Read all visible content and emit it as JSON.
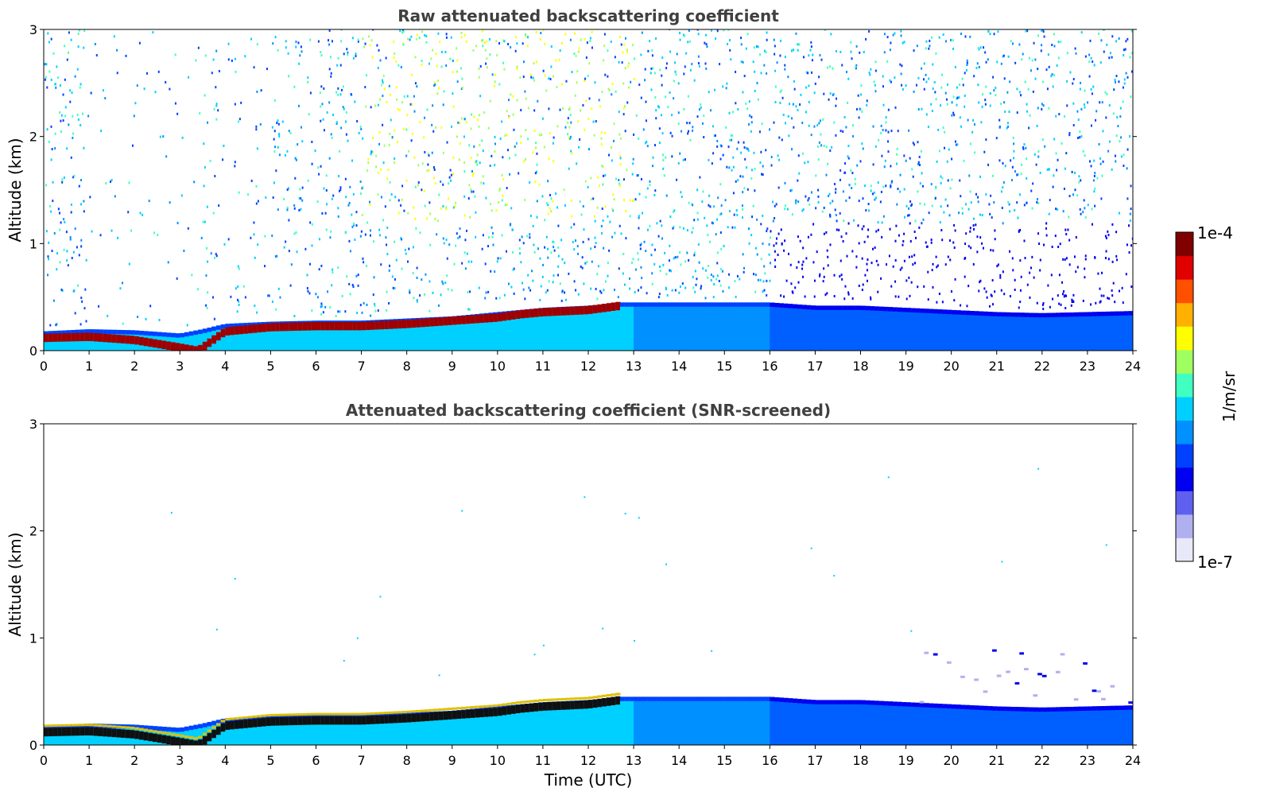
{
  "chart_data": [
    {
      "type": "heatmap",
      "title": "Raw attenuated backscattering coefficient",
      "xlabel": "",
      "ylabel": "Altitude (km)",
      "xlim": [
        0,
        24
      ],
      "ylim": [
        0,
        3
      ],
      "xticks": [
        "0",
        "1",
        "2",
        "3",
        "4",
        "5",
        "6",
        "7",
        "8",
        "9",
        "10",
        "11",
        "12",
        "13",
        "14",
        "15",
        "16",
        "17",
        "18",
        "19",
        "20",
        "21",
        "22",
        "23",
        "24"
      ],
      "yticks": [
        "0",
        "1",
        "2",
        "3"
      ],
      "boundary_layer_top_km": [
        [
          0,
          0.18
        ],
        [
          1,
          0.2
        ],
        [
          2,
          0.19
        ],
        [
          3,
          0.16
        ],
        [
          3.5,
          0.2
        ],
        [
          4,
          0.25
        ],
        [
          5,
          0.27
        ],
        [
          6,
          0.28
        ],
        [
          7,
          0.28
        ],
        [
          8,
          0.3
        ],
        [
          9,
          0.32
        ],
        [
          10,
          0.36
        ],
        [
          11,
          0.4
        ],
        [
          12,
          0.42
        ],
        [
          12.7,
          0.45
        ],
        [
          13,
          0.45
        ],
        [
          14,
          0.45
        ],
        [
          15,
          0.45
        ],
        [
          16,
          0.45
        ],
        [
          17,
          0.42
        ],
        [
          18,
          0.42
        ],
        [
          19,
          0.4
        ],
        [
          20,
          0.38
        ],
        [
          21,
          0.36
        ],
        [
          22,
          0.35
        ],
        [
          23,
          0.36
        ],
        [
          24,
          0.37
        ]
      ],
      "strong_layer_top_km": [
        [
          0,
          0.14
        ],
        [
          1,
          0.15
        ],
        [
          2,
          0.12
        ],
        [
          3,
          0.05
        ],
        [
          3.4,
          0.02
        ],
        [
          4,
          0.2
        ],
        [
          5,
          0.24
        ],
        [
          6,
          0.25
        ],
        [
          7,
          0.25
        ],
        [
          8,
          0.27
        ],
        [
          9,
          0.3
        ],
        [
          10,
          0.33
        ],
        [
          10.5,
          0.36
        ],
        [
          11,
          0.38
        ],
        [
          12,
          0.4
        ],
        [
          12.7,
          0.44
        ]
      ]
    },
    {
      "type": "heatmap",
      "title": "Attenuated backscattering coefficient (SNR-screened)",
      "xlabel": "Time (UTC)",
      "ylabel": "Altitude (km)",
      "xlim": [
        0,
        24
      ],
      "ylim": [
        0,
        3
      ],
      "xticks": [
        "0",
        "1",
        "2",
        "3",
        "4",
        "5",
        "6",
        "7",
        "8",
        "9",
        "10",
        "11",
        "12",
        "13",
        "14",
        "15",
        "16",
        "17",
        "18",
        "19",
        "20",
        "21",
        "22",
        "23",
        "24"
      ],
      "yticks": [
        "0",
        "1",
        "2",
        "3"
      ]
    }
  ],
  "colorbar": {
    "label": "1/m/sr",
    "max_label": "1e-4",
    "min_label": "1e-7",
    "scale": "log",
    "colors": [
      "#e8e8f8",
      "#b0b0f0",
      "#6060f0",
      "#0000f0",
      "#0040ff",
      "#0090ff",
      "#00d0ff",
      "#40ffc0",
      "#a0ff60",
      "#ffff00",
      "#ffb000",
      "#ff5000",
      "#e00000",
      "#800000"
    ]
  }
}
